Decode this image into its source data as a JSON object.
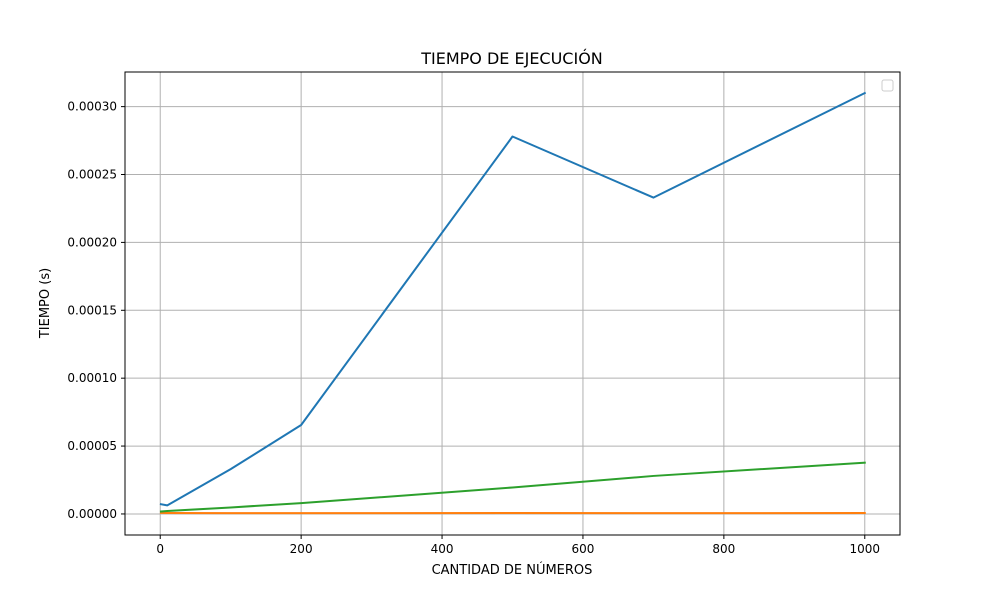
{
  "chart_data": {
    "type": "line",
    "title": "TIEMPO DE EJECUCIÓN",
    "xlabel": "CANTIDAD DE NÚMEROS",
    "ylabel": "TIEMPO (s)",
    "xlim": [
      -50,
      1050
    ],
    "ylim": [
      -1.55e-05,
      0.0003255
    ],
    "x_ticks": [
      "0",
      "200",
      "400",
      "600",
      "800",
      "1000"
    ],
    "y_ticks": [
      "0.00000",
      "0.00005",
      "0.00010",
      "0.00015",
      "0.00020",
      "0.00025",
      "0.00030"
    ],
    "grid": true,
    "legend": "upper right (empty)",
    "series": [
      {
        "color": "#1f77b4",
        "x": [
          1,
          10,
          100,
          200,
          500,
          700,
          1000
        ],
        "y": [
          7.2e-06,
          6.3e-06,
          3.3e-05,
          6.55e-05,
          0.000278,
          0.000233,
          0.00031
        ]
      },
      {
        "color": "#ff7f0e",
        "x": [
          1,
          10,
          100,
          200,
          500,
          700,
          1000
        ],
        "y": [
          8e-07,
          7e-07,
          6e-07,
          6e-07,
          7e-07,
          6e-07,
          7e-07
        ]
      },
      {
        "color": "#2ca02c",
        "x": [
          1,
          10,
          100,
          200,
          500,
          700,
          1000
        ],
        "y": [
          1.8e-06,
          2.2e-06,
          4.8e-06,
          8e-06,
          1.95e-05,
          2.8e-05,
          3.78e-05
        ]
      }
    ]
  }
}
